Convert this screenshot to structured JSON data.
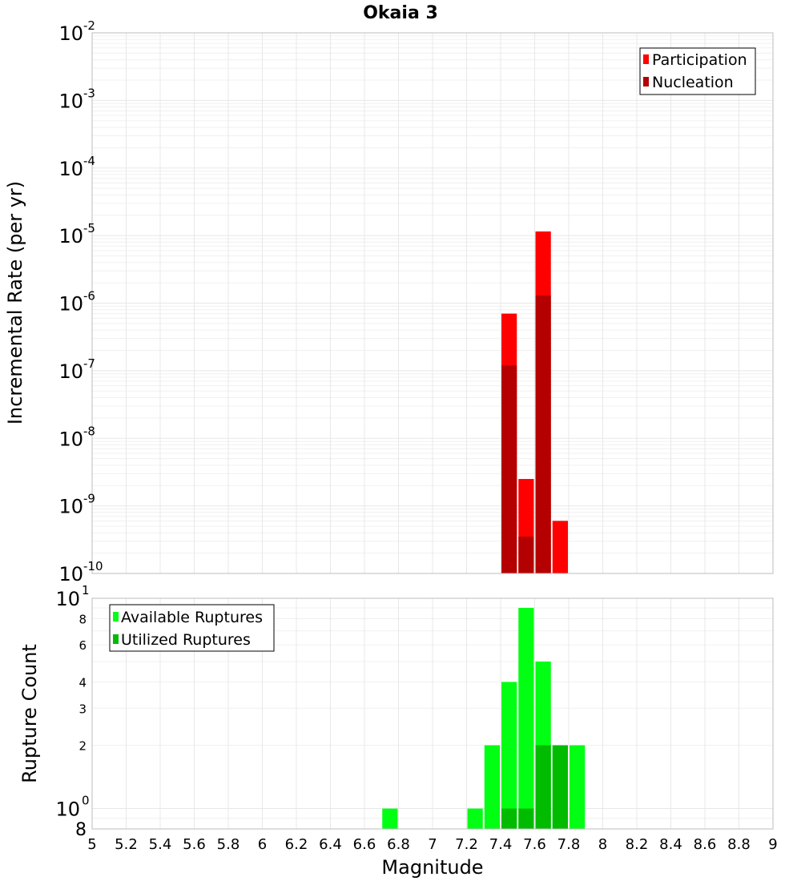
{
  "chart_data": [
    {
      "type": "bar",
      "title": "Okaia 3",
      "ylabel": "Incremental Rate (per yr)",
      "y_scale": "log",
      "ylim": [
        1e-10,
        0.01
      ],
      "y_ticks": [
        {
          "base": "10",
          "exp": "-2"
        },
        {
          "base": "10",
          "exp": "-3"
        },
        {
          "base": "10",
          "exp": "-4"
        },
        {
          "base": "10",
          "exp": "-5"
        },
        {
          "base": "10",
          "exp": "-6"
        },
        {
          "base": "10",
          "exp": "-7"
        },
        {
          "base": "10",
          "exp": "-8"
        },
        {
          "base": "10",
          "exp": "-9"
        },
        {
          "base": "10",
          "exp": "-10"
        }
      ],
      "legend_position": "top-right",
      "grid": true,
      "series": [
        {
          "name": "Participation",
          "color": "#ff0000",
          "x": [
            7.45,
            7.55,
            7.65,
            7.75
          ],
          "values": [
            7e-07,
            2.5e-09,
            1.15e-05,
            6e-10
          ]
        },
        {
          "name": "Nucleation",
          "color": "#b40000",
          "x": [
            7.45,
            7.55,
            7.65
          ],
          "values": [
            1.2e-07,
            3.5e-10,
            1.3e-06
          ]
        }
      ]
    },
    {
      "type": "bar",
      "xlabel": "Magnitude",
      "ylabel": "Rupture Count",
      "y_scale": "log",
      "ylim": [
        0.8,
        10
      ],
      "y_ticks_major": [
        {
          "value": 10,
          "base": "10",
          "exp": "1"
        },
        {
          "value": 1,
          "base": "10",
          "exp": "0"
        }
      ],
      "y_ticks_minor": [
        {
          "value": 8,
          "label": "8"
        },
        {
          "value": 6,
          "label": "6"
        },
        {
          "value": 4,
          "label": "4"
        },
        {
          "value": 3,
          "label": "3"
        },
        {
          "value": 2,
          "label": "2"
        }
      ],
      "y_bottom_label": "8",
      "xlim": [
        5,
        9
      ],
      "x_ticks": [
        "5",
        "5.2",
        "5.4",
        "5.6",
        "5.8",
        "6",
        "6.2",
        "6.4",
        "6.6",
        "6.8",
        "7",
        "7.2",
        "7.4",
        "7.6",
        "7.8",
        "8",
        "8.2",
        "8.4",
        "8.6",
        "8.8",
        "9"
      ],
      "legend_position": "top-left",
      "grid": true,
      "series": [
        {
          "name": "Available Ruptures",
          "color": "#00ff12",
          "x": [
            6.75,
            7.25,
            7.35,
            7.45,
            7.55,
            7.65,
            7.75,
            7.85
          ],
          "values": [
            1,
            1,
            2,
            4,
            9,
            5,
            2,
            2
          ]
        },
        {
          "name": "Utilized Ruptures",
          "color": "#00bb00",
          "x": [
            7.45,
            7.55,
            7.65,
            7.75
          ],
          "values": [
            1,
            1,
            2,
            2
          ]
        }
      ]
    }
  ]
}
